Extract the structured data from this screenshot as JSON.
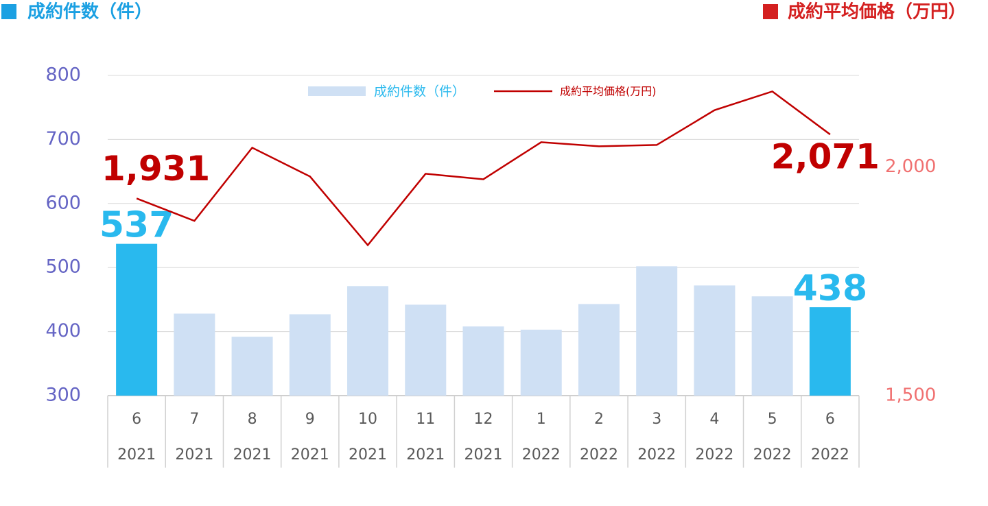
{
  "chart_data": {
    "type": "bar-line",
    "left_header": "成約件数（件）",
    "right_header": "成約平均価格（万円）",
    "categories": [
      "6",
      "7",
      "8",
      "9",
      "10",
      "11",
      "12",
      "1",
      "2",
      "3",
      "4",
      "5",
      "6"
    ],
    "category_years": [
      "2021",
      "2021",
      "2021",
      "2021",
      "2021",
      "2021",
      "2021",
      "2022",
      "2022",
      "2022",
      "2022",
      "2022",
      "2022"
    ],
    "series": [
      {
        "name": "成約件数（件）",
        "type": "bar",
        "color": "#cfe0f4",
        "highlight_color": "#29b9ee",
        "values": [
          537,
          428,
          392,
          427,
          471,
          442,
          408,
          403,
          443,
          502,
          472,
          455,
          438
        ],
        "value_labels": [
          "537",
          null,
          null,
          null,
          null,
          null,
          null,
          null,
          null,
          null,
          null,
          null,
          "438"
        ]
      },
      {
        "name": "成約平均価格(万円)",
        "type": "line",
        "axis": "y2",
        "color": "#c00000",
        "values": [
          1931,
          1882,
          2042,
          1979,
          1829,
          1985,
          1973,
          2054,
          2045,
          2048,
          2124,
          2165,
          2071
        ],
        "value_labels": [
          "1,931",
          null,
          null,
          null,
          null,
          null,
          null,
          null,
          null,
          null,
          null,
          null,
          "2,071"
        ]
      }
    ],
    "ylim": [
      300,
      800
    ],
    "yticks": [
      300,
      400,
      500,
      600,
      700,
      800
    ],
    "y2lim": [
      1500,
      2200
    ],
    "y2ticks": [
      {
        "value": 1500,
        "label": "1,500"
      },
      {
        "value": 2000,
        "label": "2,000"
      }
    ],
    "grid": true
  }
}
